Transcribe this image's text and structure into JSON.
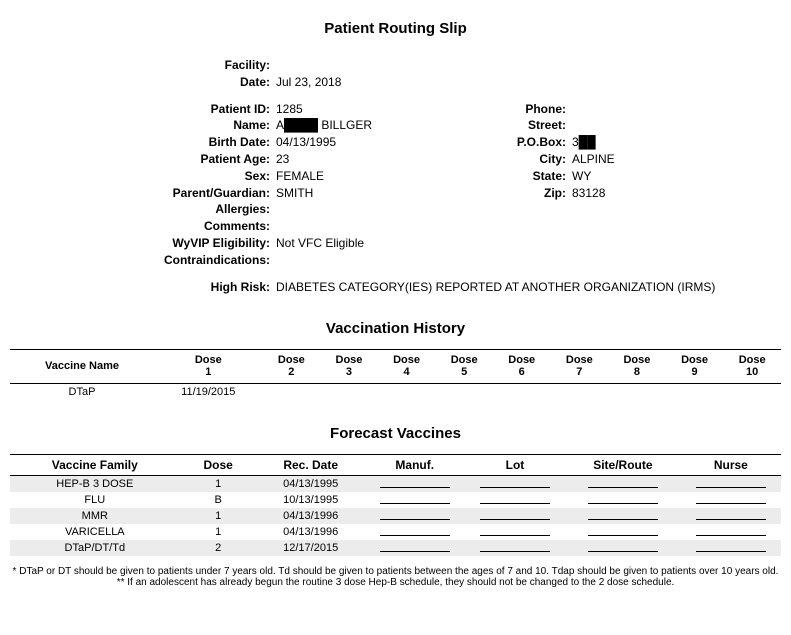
{
  "title": "Patient Routing Slip",
  "header": {
    "facility_label": "Facility:",
    "facility_value": "",
    "date_label": "Date:",
    "date_value": "Jul 23, 2018"
  },
  "patient": {
    "id_label": "Patient ID:",
    "id_value": "1285",
    "name_label": "Name:",
    "name_value": "A████ BILLGER",
    "birth_label": "Birth Date:",
    "birth_value": "04/13/1995",
    "age_label": "Patient Age:",
    "age_value": "23",
    "sex_label": "Sex:",
    "sex_value": "FEMALE",
    "guardian_label": "Parent/Guardian:",
    "guardian_value": "SMITH",
    "allergies_label": "Allergies:",
    "allergies_value": "",
    "comments_label": "Comments:",
    "comments_value": "",
    "wyvip_label": "WyVIP Eligibility:",
    "wyvip_value": "Not VFC Eligible",
    "contra_label": "Contraindications:",
    "contra_value": "",
    "highrisk_label": "High Risk:",
    "highrisk_value": "DIABETES CATEGORY(IES) REPORTED AT ANOTHER ORGANIZATION (IRMS)"
  },
  "contact": {
    "phone_label": "Phone:",
    "phone_value": "",
    "street_label": "Street:",
    "street_value": "",
    "pobox_label": "P.O.Box:",
    "pobox_value": "3██",
    "city_label": "City:",
    "city_value": "ALPINE",
    "state_label": "State:",
    "state_value": "WY",
    "zip_label": "Zip:",
    "zip_value": "83128"
  },
  "vax_history": {
    "title": "Vaccination History",
    "col_vaccine": "Vaccine Name",
    "dose_word": "Dose",
    "dose_nums": [
      "1",
      "2",
      "3",
      "4",
      "5",
      "6",
      "7",
      "8",
      "9",
      "10"
    ],
    "rows": [
      {
        "name": "DTaP",
        "doses": [
          "11/19/2015",
          "",
          "",
          "",
          "",
          "",
          "",
          "",
          "",
          ""
        ]
      }
    ]
  },
  "forecast": {
    "title": "Forecast Vaccines",
    "headers": [
      "Vaccine Family",
      "Dose",
      "Rec. Date",
      "Manuf.",
      "Lot",
      "Site/Route",
      "Nurse"
    ],
    "rows": [
      {
        "family": "HEP-B 3 DOSE",
        "dose": "1",
        "rec": "04/13/1995"
      },
      {
        "family": "FLU",
        "dose": "B",
        "rec": "10/13/1995"
      },
      {
        "family": "MMR",
        "dose": "1",
        "rec": "04/13/1996"
      },
      {
        "family": "VARICELLA",
        "dose": "1",
        "rec": "04/13/1996"
      },
      {
        "family": "DTaP/DT/Td",
        "dose": "2",
        "rec": "12/17/2015"
      }
    ]
  },
  "footnotes": {
    "l1": "* DTaP or DT should be given to patients under 7 years old. Td should be given to patients between the ages of 7 and 10. Tdap should be given to patients over 10 years old.",
    "l2": "** If an adolescent has already begun the routine 3 dose Hep-B schedule, they should not be changed to the 2 dose schedule."
  }
}
